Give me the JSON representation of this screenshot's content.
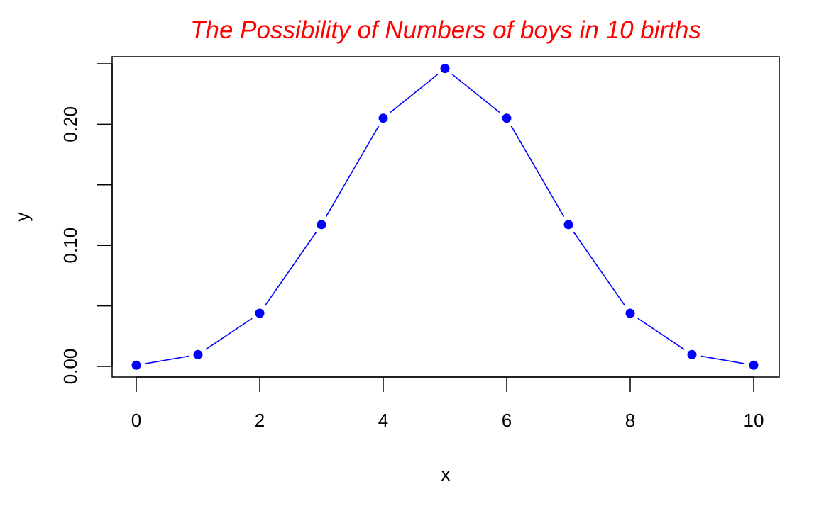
{
  "chart_data": {
    "type": "line",
    "title": "The Possibility of Numbers of boys in 10 births",
    "xlabel": "x",
    "ylabel": "y",
    "xlim": [
      0,
      10
    ],
    "ylim": [
      0,
      0.25
    ],
    "x_ticks": [
      "0",
      "2",
      "4",
      "6",
      "8",
      "10"
    ],
    "y_ticks": [
      "0.00",
      "0.10",
      "0.20"
    ],
    "grid": false,
    "legend": "none",
    "colors": {
      "title": "#ff0000",
      "series": "#0000ff",
      "axes": "#000000"
    },
    "series": [
      {
        "x": [
          0,
          1,
          2,
          3,
          4,
          5,
          6,
          7,
          8,
          9,
          10
        ],
        "values": [
          0.001,
          0.0098,
          0.0439,
          0.1172,
          0.2051,
          0.2461,
          0.2051,
          0.1172,
          0.0439,
          0.0098,
          0.001
        ]
      }
    ]
  }
}
